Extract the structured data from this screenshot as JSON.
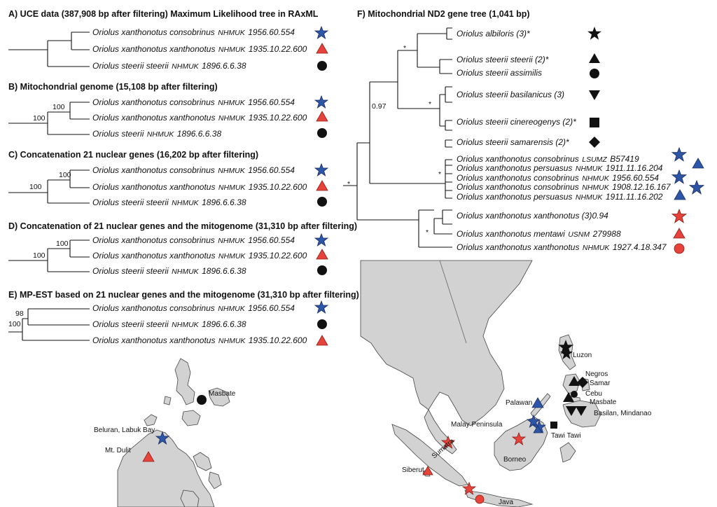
{
  "colors": {
    "blue": "#2d55a8",
    "red": "#e8433a",
    "black": "#111111",
    "land": "#d2d2d2"
  },
  "panels": {
    "a": {
      "title": "A) UCE data (387,908 bp after filtering) Maximum Likelihood tree in RAxML",
      "rows": [
        {
          "taxon": "Oriolus xanthonotus consobrinus",
          "cat": "NHMUK",
          "num": "1956.60.554",
          "symbol": "star-blue"
        },
        {
          "taxon": "Oriolus xanthonotus xanthonotus",
          "cat": "NHMUK",
          "num": "1935.10.22.600",
          "symbol": "triangle-red"
        },
        {
          "taxon": "Oriolus steerii steerii",
          "cat": "NHMUK",
          "num": "1896.6.6.38",
          "symbol": "circle-black"
        }
      ]
    },
    "b": {
      "title": "B) Mitochondrial genome (15,108 bp after filtering)",
      "support_inner": "100",
      "support_outer": "100",
      "rows": [
        {
          "taxon": "Oriolus xanthonotus consobrinus",
          "cat": "NHMUK",
          "num": "1956.60.554",
          "symbol": "star-blue"
        },
        {
          "taxon": "Oriolus xanthonotus xanthonotus",
          "cat": "NHMUK",
          "num": "1935.10.22.600",
          "symbol": "triangle-red"
        },
        {
          "taxon": "Oriolus steerii",
          "cat": "NHMUK",
          "num": "1896.6.6.38",
          "symbol": "circle-black"
        }
      ]
    },
    "c": {
      "title": "C) Concatenation 21 nuclear genes (16,202 bp after filtering)",
      "support_inner": "100",
      "support_outer": "100",
      "rows": [
        {
          "taxon": "Oriolus xanthonotus consobrinus",
          "cat": "NHMUK",
          "num": "1956.60.554",
          "symbol": "star-blue"
        },
        {
          "taxon": "Oriolus xanthonotus xanthonotus",
          "cat": "NHMUK",
          "num": "1935.10.22.600",
          "symbol": "triangle-red"
        },
        {
          "taxon": "Oriolus steerii steerii",
          "cat": "NHMUK",
          "num": "1896.6.6.38",
          "symbol": "circle-black"
        }
      ]
    },
    "d": {
      "title": "D) Concatenation of 21 nuclear genes and the mitogenome (31,310 bp after filtering)",
      "support_inner": "100",
      "support_outer": "100",
      "rows": [
        {
          "taxon": "Oriolus xanthonotus consobrinus",
          "cat": "NHMUK",
          "num": "1956.60.554",
          "symbol": "star-blue"
        },
        {
          "taxon": "Oriolus xanthonotus xanthonotus",
          "cat": "NHMUK",
          "num": "1935.10.22.600",
          "symbol": "triangle-red"
        },
        {
          "taxon": "Oriolus steerii steerii",
          "cat": "NHMUK",
          "num": "1896.6.6.38",
          "symbol": "circle-black"
        }
      ]
    },
    "e": {
      "title": "E) MP-EST based on 21 nuclear genes and the mitogenome (31,310 bp after filtering)",
      "support_inner": "98",
      "support_outer": "100",
      "rows": [
        {
          "taxon": "Oriolus xanthonotus consobrinus",
          "cat": "NHMUK",
          "num": "1956.60.554",
          "symbol": "star-blue"
        },
        {
          "taxon": "Oriolus steerii steerii",
          "cat": "NHMUK",
          "num": "1896.6.6.38",
          "symbol": "circle-black"
        },
        {
          "taxon": "Oriolus xanthonotus xanthonotus",
          "cat": "NHMUK",
          "num": "1935.10.22.600",
          "symbol": "triangle-red"
        }
      ]
    },
    "f": {
      "title": "F) Mitochondrial ND2 gene tree (1,041 bp)",
      "support_097": "0.97",
      "star": "*",
      "rows": [
        {
          "taxon": "Oriolus albiloris (3)*",
          "cat": "",
          "num": "",
          "symbol": "star-black"
        },
        {
          "taxon": "Oriolus steerii steerii (2)*",
          "cat": "",
          "num": "",
          "symbol": "triangle-black"
        },
        {
          "taxon": "Oriolus steerii assimilis",
          "cat": "",
          "num": "",
          "symbol": "circle-black"
        },
        {
          "taxon": "Oriolus steerii basilanicus (3)",
          "cat": "",
          "num": "",
          "symbol": "invtriangle-black"
        },
        {
          "taxon": "Oriolus steerii cinereogenys (2)*",
          "cat": "",
          "num": "",
          "symbol": "square-black"
        },
        {
          "taxon": "Oriolus steerii samarensis (2)*",
          "cat": "",
          "num": "",
          "symbol": "diamond-black"
        },
        {
          "taxon": "Oriolus xanthonotus consobrinus",
          "cat": "LSUMZ",
          "num": "B57419",
          "symbol": "star-blue"
        },
        {
          "taxon": "Oriolus xanthonotus persuasus",
          "cat": "NHMUK",
          "num": "1911.11.16.204",
          "symbol": "triangle-blue"
        },
        {
          "taxon": "Oriolus xanthonotus consobrinus",
          "cat": "NHMUK",
          "num": "1956.60.554",
          "symbol": "star-blue"
        },
        {
          "taxon": "Oriolus xanthonotus consobrinus",
          "cat": "NHMUK",
          "num": "1908.12.16.167",
          "symbol": "star-blue"
        },
        {
          "taxon": "Oriolus xanthonotus persuasus",
          "cat": "NHMUK",
          "num": "1911.11.16.202",
          "symbol": "triangle-blue"
        },
        {
          "taxon": "Oriolus xanthonotus xanthonotus (3)0.94",
          "cat": "",
          "num": "",
          "symbol": "star-red"
        },
        {
          "taxon": "Oriolus xanthonotus mentawi",
          "cat": "USNM",
          "num": "279988",
          "symbol": "triangle-red"
        },
        {
          "taxon": "Oriolus xanthonotus xanthonotus",
          "cat": "NHMUK",
          "num": "1927.4.18.347",
          "symbol": "circle-red"
        }
      ]
    }
  },
  "map_small": {
    "labels": [
      "Masbate",
      "Beluran, Labuk Bay",
      "Mt. Dulit"
    ]
  },
  "map_large": {
    "labels": [
      "Luzon",
      "Negros",
      "Samar",
      "Cebu",
      "Masbate",
      "Palawan",
      "Basilan, Mindanao",
      "Malay Peninsula",
      "Tawi Tawi",
      "Borneo",
      "Sumatra",
      "Siberut",
      "Java"
    ]
  }
}
